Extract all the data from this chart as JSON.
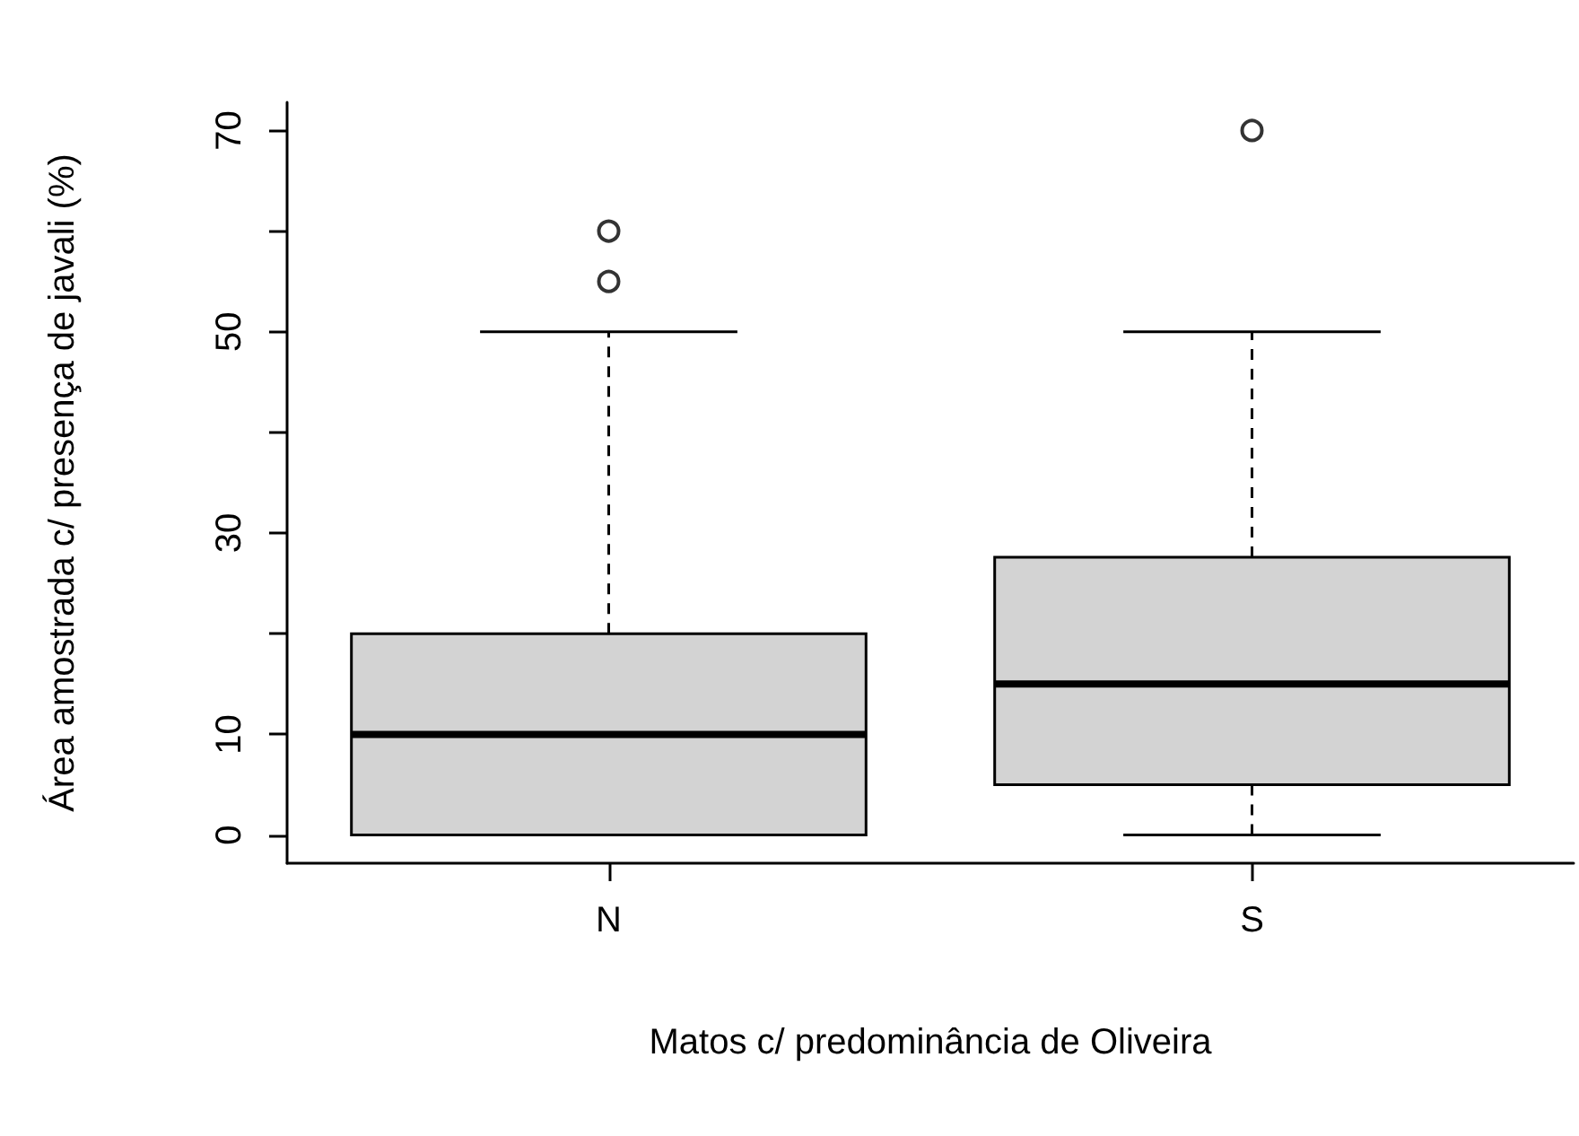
{
  "chart_data": {
    "type": "box",
    "xlabel": "Matos c/ predominância de Oliveira",
    "ylabel": "Área amostrada c/ presença de javali (%)",
    "categories": [
      "N",
      "S"
    ],
    "boxes": [
      {
        "low": 0,
        "q1": 0,
        "median": 10,
        "q3": 20,
        "high": 50,
        "outliers": [
          60,
          55
        ]
      },
      {
        "low": 0,
        "q1": 5,
        "median": 15,
        "q3": 27.6,
        "high": 50,
        "outliers": [
          70
        ]
      }
    ],
    "color": "#d3d3d3",
    "ylim": [
      -2.8,
      72.8
    ],
    "yticks": [
      0,
      10,
      {
        "value": 20,
        "label": null
      },
      30,
      {
        "value": 40,
        "label": null
      },
      50,
      {
        "value": 60,
        "label": null
      },
      70
    ],
    "grid": false,
    "marker": "circle"
  }
}
